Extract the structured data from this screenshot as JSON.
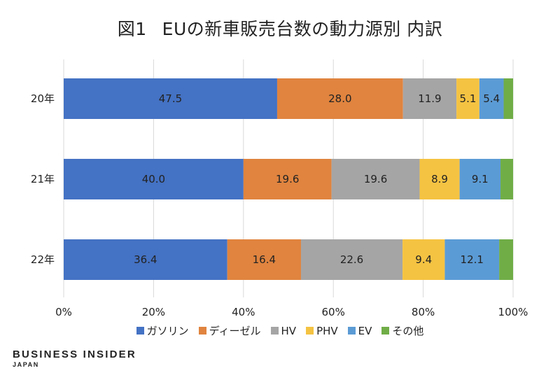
{
  "chart_data": {
    "type": "bar",
    "orientation": "horizontal",
    "stacked": true,
    "title_label": "図1",
    "title": "EUの新車販売台数の動力源別 内訳",
    "categories": [
      "20年",
      "21年",
      "22年"
    ],
    "series": [
      {
        "name": "ガソリン",
        "color": "#4472C4",
        "values": [
          47.5,
          40.0,
          36.4
        ],
        "labels": [
          "47.5",
          "40.0",
          "36.4"
        ]
      },
      {
        "name": "ディーゼル",
        "color": "#E0843F",
        "values": [
          28.0,
          19.6,
          16.4
        ],
        "labels": [
          "28.0",
          "19.6",
          "16.4"
        ]
      },
      {
        "name": "HV",
        "color": "#A5A5A5",
        "values": [
          11.9,
          19.6,
          22.6
        ],
        "labels": [
          "11.9",
          "19.6",
          "22.6"
        ]
      },
      {
        "name": "PHV",
        "color": "#F5C342",
        "values": [
          5.1,
          8.9,
          9.4
        ],
        "labels": [
          "5.1",
          "8.9",
          "9.4"
        ]
      },
      {
        "name": "EV",
        "color": "#5B9BD5",
        "values": [
          5.4,
          9.1,
          12.1
        ],
        "labels": [
          "5.4",
          "9.1",
          "12.1"
        ]
      },
      {
        "name": "その他",
        "color": "#70AD47",
        "values": [
          2.1,
          2.8,
          3.1
        ],
        "labels": [
          "",
          "",
          ""
        ]
      }
    ],
    "xlim": [
      0,
      100
    ],
    "xticks": [
      "0%",
      "20%",
      "40%",
      "60%",
      "80%",
      "100%"
    ],
    "grid": true,
    "legend_position": "bottom"
  },
  "brand": {
    "name": "BUSINESS INSIDER",
    "region": "JAPAN"
  }
}
